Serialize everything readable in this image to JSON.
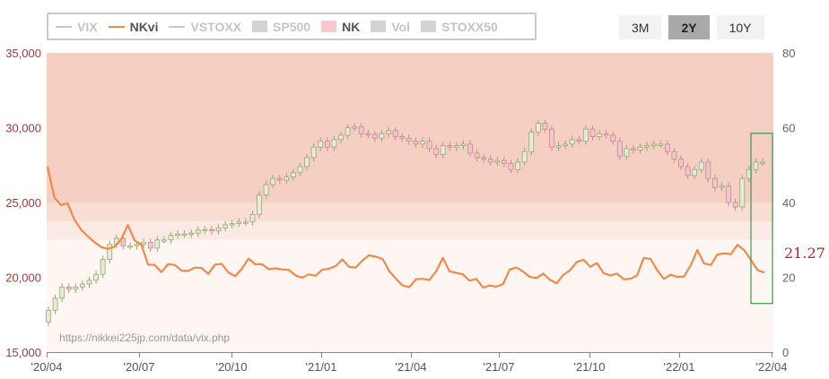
{
  "legend": [
    {
      "label": "VIX",
      "kind": "line",
      "color": "#c8c8c8",
      "active": false
    },
    {
      "label": "NKvi",
      "kind": "line",
      "color": "#f08a4b",
      "active": true
    },
    {
      "label": "VSTOXX",
      "kind": "line",
      "color": "#c8c8c8",
      "active": false
    },
    {
      "label": "SP500",
      "kind": "box",
      "color": "#d3d3d3",
      "active": false
    },
    {
      "label": "NK",
      "kind": "box",
      "color": "#f7c9cf",
      "active": true
    },
    {
      "label": "Vol",
      "kind": "box",
      "color": "#d3d3d3",
      "active": false
    },
    {
      "label": "STOXX50",
      "kind": "box",
      "color": "#d3d3d3",
      "active": false
    }
  ],
  "range_buttons": [
    {
      "label": "3M",
      "selected": false
    },
    {
      "label": "2Y",
      "selected": true
    },
    {
      "label": "10Y",
      "selected": false
    }
  ],
  "source_text": "https://nikkei225jp.com/data/vix.php",
  "last_value_label": "21.27",
  "colors": {
    "nkvi_line": "#f08a4b",
    "candle_up_fill": "#e6ecd6",
    "candle_up_stroke": "#9aa67a",
    "candle_down_fill": "#f2c6cb",
    "candle_down_stroke": "#c58a90",
    "left_axis_text": "#a03a3a",
    "right_axis_text": "#666666",
    "last_value_text": "#c0202a",
    "highlight_box": "#3a9a4a"
  },
  "chart_data": {
    "type": "line",
    "x_ticks": [
      "'20/04",
      "'20/07",
      "'20/10",
      "'21/01",
      "'21/04",
      "'21/07",
      "'21/10",
      "'22/01",
      "'22/04"
    ],
    "left_axis": {
      "ticks": [
        "15,000",
        "20,000",
        "25,000",
        "30,000",
        "35,000"
      ],
      "range": [
        15000,
        35000
      ]
    },
    "right_axis": {
      "ticks": [
        "0",
        "20",
        "40",
        "60",
        "80"
      ],
      "range": [
        0,
        80
      ]
    },
    "bands": [
      {
        "from": 40,
        "to": 80,
        "color": "#f5cfc2"
      },
      {
        "from": 35,
        "to": 40,
        "color": "#f8ddd3"
      },
      {
        "from": 30,
        "to": 35,
        "color": "#fbeae4"
      },
      {
        "from": 0,
        "to": 30,
        "color": "#fdf6f3"
      }
    ],
    "series": [
      {
        "name": "NKvi",
        "axis": "right",
        "values": [
          49.6,
          41.4,
          39.3,
          39.8,
          35.4,
          32.8,
          31.0,
          29.4,
          28.1,
          27.6,
          28.2,
          30.2,
          34.0,
          29.8,
          28.8,
          23.4,
          23.3,
          21.4,
          23.5,
          23.3,
          21.8,
          21.7,
          22.6,
          22.5,
          20.9,
          23.4,
          23.6,
          21.3,
          20.3,
          22.3,
          25.0,
          23.5,
          23.5,
          22.2,
          22.4,
          22.1,
          22.0,
          20.5,
          19.9,
          20.8,
          20.4,
          22.0,
          22.3,
          23.0,
          24.8,
          22.8,
          22.6,
          24.5,
          25.9,
          25.5,
          24.9,
          21.7,
          19.6,
          17.8,
          17.4,
          19.5,
          19.6,
          19.3,
          21.6,
          25.2,
          21.6,
          21.2,
          20.8,
          19.1,
          19.6,
          17.3,
          17.8,
          17.5,
          18.2,
          22.1,
          22.6,
          21.5,
          20.1,
          19.8,
          21.0,
          19.3,
          18.4,
          20.7,
          21.9,
          24.1,
          24.7,
          22.8,
          23.8,
          21.1,
          20.5,
          21.0,
          19.5,
          19.6,
          20.5,
          25.2,
          24.9,
          21.9,
          19.6,
          20.7,
          20.1,
          20.2,
          23.2,
          27.3,
          23.7,
          23.3,
          26.1,
          26.4,
          26.2,
          28.7,
          27.2,
          24.6,
          21.9,
          21.27
        ]
      }
    ],
    "candles": {
      "name": "NK",
      "axis": "left",
      "closes": [
        17800,
        18600,
        19350,
        19200,
        19350,
        19550,
        19800,
        20200,
        21200,
        22200,
        22600,
        22100,
        22100,
        22200,
        22350,
        21950,
        22500,
        22500,
        22800,
        22900,
        22900,
        22950,
        23150,
        23200,
        23100,
        23300,
        23500,
        23600,
        23700,
        23700,
        24200,
        25500,
        26200,
        26600,
        26500,
        26700,
        27000,
        27400,
        28000,
        28700,
        29100,
        28700,
        29200,
        29500,
        30000,
        30050,
        29600,
        29550,
        29300,
        29600,
        29800,
        29400,
        29300,
        29100,
        28900,
        29100,
        28600,
        28200,
        28800,
        28700,
        28800,
        28900,
        28300,
        28000,
        27900,
        27700,
        27800,
        27600,
        27200,
        27700,
        28400,
        29700,
        30300,
        29900,
        28700,
        28800,
        28900,
        29200,
        29100,
        29900,
        29400,
        29600,
        29500,
        29100,
        28100,
        28600,
        28500,
        28700,
        28800,
        28900,
        28900,
        28400,
        27900,
        27400,
        26800,
        27200,
        27700,
        26600,
        26000,
        26100,
        25000,
        24700,
        26600,
        27200,
        27700,
        27700
      ]
    }
  }
}
